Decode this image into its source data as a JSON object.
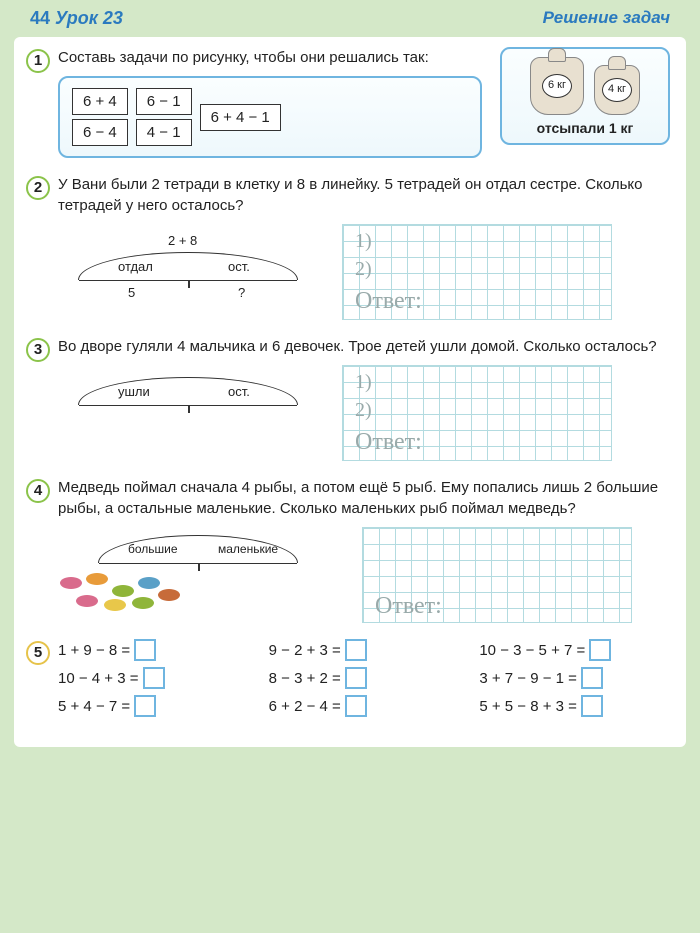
{
  "header": {
    "page": "44",
    "lesson": "Урок 23",
    "title": "Решение задач"
  },
  "t1": {
    "num": "1",
    "text": "Составь задачи по рисунку, чтобы они решались так:",
    "eq": [
      "6 + 4",
      "6 − 1",
      "6 − 4",
      "4 − 1",
      "6 + 4 − 1"
    ],
    "bag1": "6 кг",
    "bag2": "4 кг",
    "caption": "отсыпали 1 кг"
  },
  "t2": {
    "num": "2",
    "text": "У Вани были 2 тетради в клетку и 8 в линейку. 5 тетрадей он отдал сестре. Сколько тетрадей у него осталось?",
    "top": "2 + 8",
    "l1": "отдал",
    "l2": "ост.",
    "b1": "5",
    "b2": "?",
    "a1": "1)",
    "a2": "2)",
    "ans": "Ответ:"
  },
  "t3": {
    "num": "3",
    "text": "Во дворе гуляли 4 мальчика и 6 девочек. Трое детей ушли домой. Сколько осталось?",
    "l1": "ушли",
    "l2": "ост.",
    "a1": "1)",
    "a2": "2)",
    "ans": "Ответ:"
  },
  "t4": {
    "num": "4",
    "text": "Медведь поймал сначала 4 рыбы, а потом ещё 5 рыб. Ему попались лишь 2 большие рыбы, а остальные маленькие. Сколько маленьких рыб поймал медведь?",
    "l1": "большие",
    "l2": "маленькие",
    "ans": "Ответ:"
  },
  "t5": {
    "num": "5",
    "rows": [
      [
        "1 + 9 − 8 =",
        "9 − 2 + 3 =",
        "10 − 3 − 5 + 7 ="
      ],
      [
        "10 − 4 + 3 =",
        "8 − 3 + 2 =",
        "3 + 7 − 9 − 1 ="
      ],
      [
        "5 + 4 − 7 =",
        "6 + 2 − 4 =",
        "5 + 5 − 8 + 3 ="
      ]
    ]
  },
  "fish_colors": [
    "#d96b8c",
    "#e89b3a",
    "#8fb53a",
    "#5aa0c7",
    "#d96b8c",
    "#e8c74a",
    "#8fb53a",
    "#c76b3a"
  ]
}
